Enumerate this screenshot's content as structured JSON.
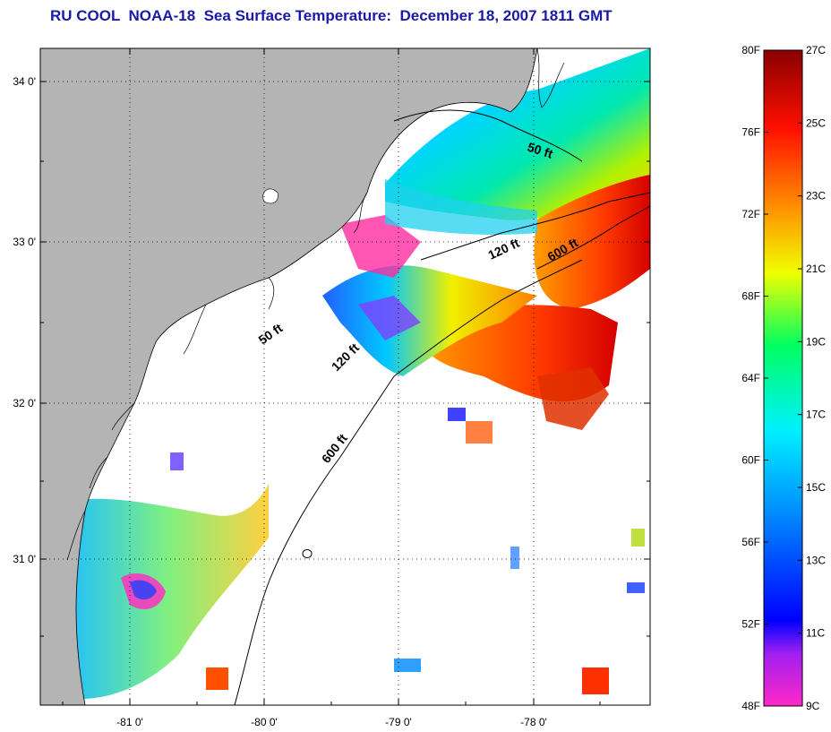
{
  "title": "RU COOL  NOAA-18  Sea Surface Temperature:  December 18, 2007 1811 GMT",
  "map": {
    "lon_labels": [
      "-81 0'",
      "-80 0'",
      "-79 0'",
      "-78 0'"
    ],
    "lat_labels": [
      "34 0'",
      "33 0'",
      "32 0'",
      "31 0'"
    ],
    "isobaths": [
      {
        "label": "50 ft"
      },
      {
        "label": "50 ft"
      },
      {
        "label": "120 ft"
      },
      {
        "label": "120 ft"
      },
      {
        "label": "600 ft"
      },
      {
        "label": "600 ft"
      }
    ],
    "colors": {
      "land": "#b4b4b4",
      "no_data": "#ffffff",
      "grid": "#000000"
    }
  },
  "colorbar": {
    "fahrenheit_labels": [
      "80F",
      "76F",
      "72F",
      "68F",
      "64F",
      "60F",
      "56F",
      "52F",
      "48F"
    ],
    "celsius_labels": [
      "27C",
      "25C",
      "23C",
      "21C",
      "19C",
      "17C",
      "15C",
      "13C",
      "11C",
      "9C"
    ],
    "range_f": [
      48,
      80
    ],
    "range_c": [
      9,
      27
    ]
  }
}
